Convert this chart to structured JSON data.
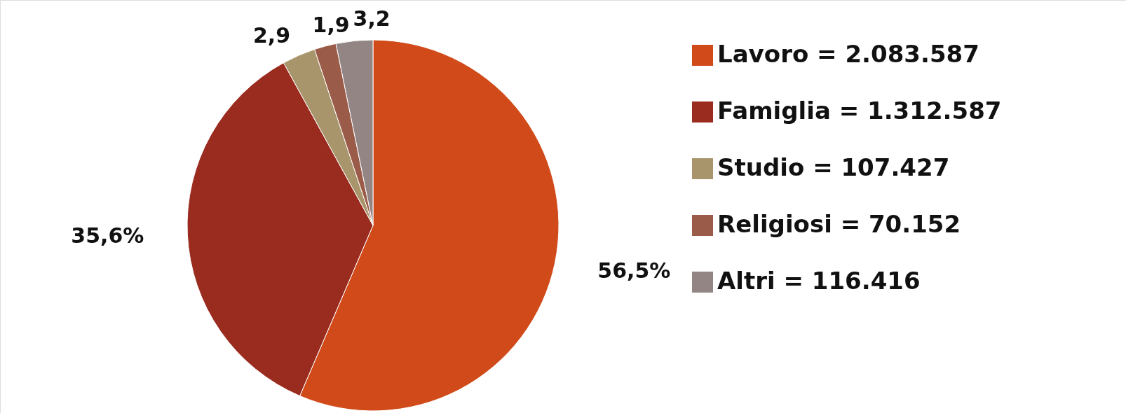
{
  "chart_data": {
    "type": "pie",
    "categories": [
      "Lavoro = 2.083.587",
      "Famiglia = 1.312.587",
      "Studio = 107.427",
      "Religiosi = 70.152",
      "Altri = 116.416"
    ],
    "values": [
      56.5,
      35.6,
      2.9,
      1.9,
      3.2
    ],
    "colors": [
      "#d04a1a",
      "#9a2b1f",
      "#a8956b",
      "#9a5c48",
      "#948585"
    ],
    "value_labels": [
      "56,5%",
      "35,6%",
      "2,9",
      "1,9",
      "3,2"
    ],
    "legend": "right"
  }
}
